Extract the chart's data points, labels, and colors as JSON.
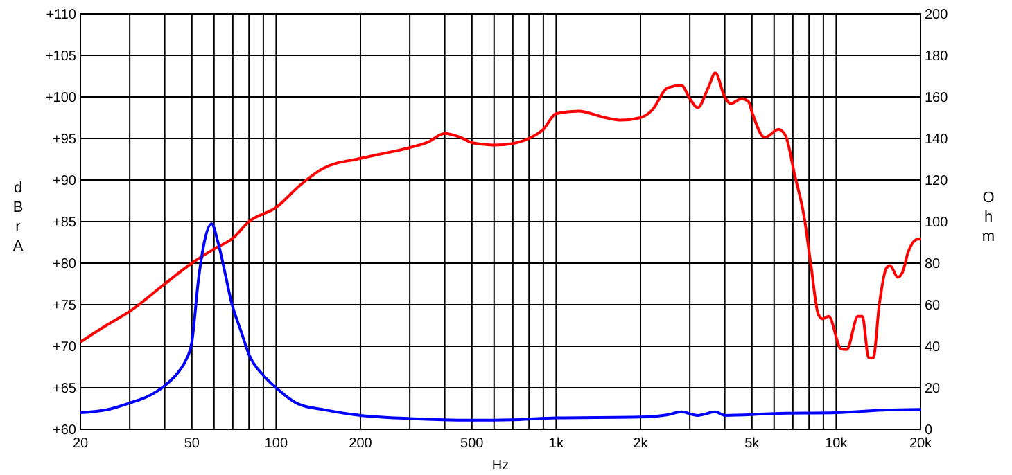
{
  "chart_data": {
    "type": "line",
    "xlabel": "Hz",
    "ylabel": "dBrA",
    "y2label": "Ohm",
    "log": "x",
    "grid": true,
    "marker": "none",
    "line_style": "solid",
    "xlim": [
      20,
      20000
    ],
    "xticks": [
      20,
      {
        "value": 30,
        "label": null
      },
      {
        "value": 40,
        "label": null
      },
      50,
      {
        "value": 60,
        "label": null
      },
      {
        "value": 70,
        "label": null
      },
      {
        "value": 80,
        "label": null
      },
      {
        "value": 90,
        "label": null
      },
      100,
      200,
      {
        "value": 300,
        "label": null
      },
      {
        "value": 400,
        "label": null
      },
      500,
      {
        "value": 600,
        "label": null
      },
      {
        "value": 700,
        "label": null
      },
      {
        "value": 800,
        "label": null
      },
      {
        "value": 900,
        "label": null
      },
      {
        "value": 1000,
        "label": "1k"
      },
      {
        "value": 2000,
        "label": "2k"
      },
      {
        "value": 3000,
        "label": null
      },
      {
        "value": 4000,
        "label": null
      },
      {
        "value": 5000,
        "label": "5k"
      },
      {
        "value": 6000,
        "label": null
      },
      {
        "value": 7000,
        "label": null
      },
      {
        "value": 8000,
        "label": null
      },
      {
        "value": 9000,
        "label": null
      },
      {
        "value": 10000,
        "label": "10k"
      },
      {
        "value": 20000,
        "label": "20k"
      }
    ],
    "ylim": [
      60,
      110
    ],
    "yticks": [
      {
        "value": 60,
        "label": "+60"
      },
      {
        "value": 65,
        "label": "+65"
      },
      {
        "value": 70,
        "label": "+70"
      },
      {
        "value": 75,
        "label": "+75"
      },
      {
        "value": 80,
        "label": "+80"
      },
      {
        "value": 85,
        "label": "+85"
      },
      {
        "value": 90,
        "label": "+90"
      },
      {
        "value": 95,
        "label": "+95"
      },
      {
        "value": 100,
        "label": "+100"
      },
      {
        "value": 105,
        "label": "+105"
      },
      {
        "value": 110,
        "label": "+110"
      }
    ],
    "y2lim": [
      0,
      200
    ],
    "y2ticks": [
      0,
      20,
      40,
      60,
      80,
      100,
      120,
      140,
      160,
      180,
      200
    ],
    "series": [
      {
        "color": "#ff0000",
        "x": [
          20,
          25,
          30,
          40,
          50,
          60,
          70,
          80,
          100,
          122,
          147,
          200,
          250,
          300,
          350,
          400,
          450,
          500,
          550,
          600,
          700,
          800,
          900,
          1000,
          1200,
          1500,
          1700,
          2000,
          2200,
          2500,
          2800,
          3000,
          3200,
          3500,
          3700,
          4000,
          4200,
          4600,
          4870,
          5000,
          5560,
          6230,
          6600,
          7110,
          7680,
          8130,
          8620,
          8930,
          9400,
          10400,
          10900,
          11960,
          12400,
          13060,
          13560,
          14250,
          15100,
          15570,
          16600,
          17250,
          18100,
          19600,
          20000
        ],
        "values": [
          70.5,
          72.6,
          74.2,
          77.5,
          80,
          81.7,
          83,
          85,
          86.7,
          89.4,
          91.4,
          92.6,
          93.3,
          93.9,
          94.6,
          95.6,
          95.2,
          94.5,
          94.3,
          94.2,
          94.4,
          95,
          96.1,
          98,
          98.3,
          97.5,
          97.2,
          97.5,
          98.4,
          101.1,
          101.4,
          99.8,
          98.7,
          101.2,
          102.9,
          100,
          99.2,
          99.8,
          99.4,
          98.2,
          95.1,
          96.1,
          95.3,
          90.6,
          85.6,
          79.7,
          73.9,
          73.3,
          73.6,
          69.7,
          69.6,
          73.6,
          73.6,
          68.6,
          68.6,
          75,
          79.4,
          79.7,
          78.3,
          78.9,
          81.4,
          82.9,
          82.9
        ]
      },
      {
        "color": "#0000ff",
        "axis": "y2",
        "x": [
          20,
          25,
          30,
          35,
          40,
          45,
          47.5,
          50,
          52.9,
          55,
          58.8,
          62,
          66,
          69,
          75,
          80.3,
          90,
          100,
          120,
          150,
          200,
          300,
          500,
          700,
          1000,
          2000,
          2500,
          2800,
          3200,
          3700,
          4000,
          6000,
          10000,
          15000,
          20000
        ],
        "values": [
          8,
          9.5,
          12.7,
          16,
          21,
          28,
          33,
          42,
          73,
          88,
          98.9,
          90,
          74,
          62,
          47,
          35.5,
          26,
          20,
          12.2,
          9.3,
          6.7,
          5.2,
          4.4,
          4.6,
          5.5,
          5.9,
          7,
          8.4,
          6.7,
          8.4,
          6.7,
          7.6,
          8,
          9.3,
          9.6
        ]
      }
    ]
  }
}
